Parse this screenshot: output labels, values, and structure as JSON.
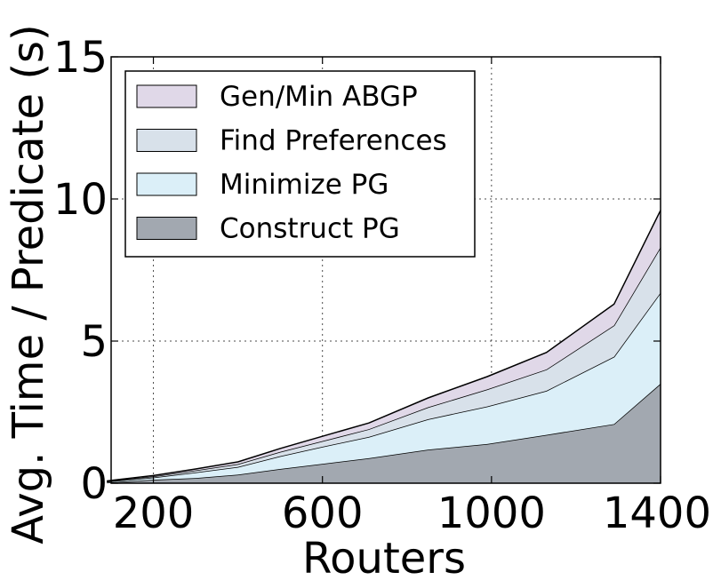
{
  "chart_data": {
    "type": "area",
    "stacked": true,
    "title": "",
    "xlabel": "Routers",
    "ylabel": "Avg. Time / Predicate (s)",
    "xlim": [
      100,
      1400
    ],
    "ylim": [
      0,
      15
    ],
    "xticks": [
      200,
      600,
      1000,
      1400
    ],
    "yticks": [
      0,
      5,
      10,
      15
    ],
    "grid": true,
    "legend_position": "top-left",
    "x": [
      90,
      200,
      300,
      400,
      500,
      600,
      710,
      850,
      990,
      1130,
      1290,
      1400
    ],
    "series": [
      {
        "name": "Construct PG",
        "color": "#a2a8b0",
        "values": [
          0.02,
          0.12,
          0.18,
          0.3,
          0.5,
          0.68,
          0.88,
          1.18,
          1.38,
          1.7,
          2.08,
          3.5
        ]
      },
      {
        "name": "Minimize PG",
        "color": "#dbeff8",
        "values": [
          0.03,
          0.08,
          0.2,
          0.27,
          0.45,
          0.6,
          0.75,
          1.07,
          1.32,
          1.55,
          2.37,
          3.2
        ]
      },
      {
        "name": "Find Preferences",
        "color": "#d8e1ea",
        "values": [
          0.02,
          0.04,
          0.07,
          0.1,
          0.15,
          0.2,
          0.27,
          0.42,
          0.6,
          0.75,
          1.1,
          1.6
        ]
      },
      {
        "name": "Gen/Min ABGP",
        "color": "#e0d8e8",
        "values": [
          0.01,
          0.03,
          0.05,
          0.08,
          0.12,
          0.17,
          0.22,
          0.33,
          0.45,
          0.6,
          0.75,
          1.3
        ]
      }
    ],
    "legend_order": [
      "Gen/Min ABGP",
      "Find Preferences",
      "Minimize PG",
      "Construct PG"
    ]
  }
}
